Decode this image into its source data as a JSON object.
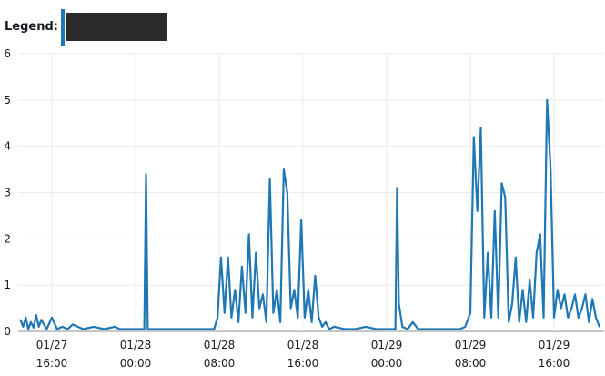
{
  "legend": {
    "label": "Legend:"
  },
  "chart_data": {
    "type": "line",
    "title": "",
    "xlabel": "",
    "ylabel": "",
    "ylim": [
      0,
      6
    ],
    "yticks": [
      0,
      1,
      2,
      3,
      4,
      5,
      6
    ],
    "grid": true,
    "legend_position": "top-left",
    "series_color": "#1f77b4",
    "x_tick_labels": [
      [
        "01/27",
        "16:00"
      ],
      [
        "01/28",
        "00:00"
      ],
      [
        "01/28",
        "08:00"
      ],
      [
        "01/28",
        "16:00"
      ],
      [
        "01/29",
        "00:00"
      ],
      [
        "01/29",
        "08:00"
      ],
      [
        "01/29",
        "16:00"
      ]
    ],
    "series": [
      {
        "x": [
          "01/27 13:00",
          "01/27 13:15",
          "01/27 13:30",
          "01/27 13:45",
          "01/27 14:00",
          "01/27 14:15",
          "01/27 14:30",
          "01/27 14:45",
          "01/27 15:00",
          "01/27 15:30",
          "01/27 16:00",
          "01/27 16:30",
          "01/27 17:00",
          "01/27 17:30",
          "01/27 18:00",
          "01/27 19:00",
          "01/27 20:00",
          "01/27 21:00",
          "01/27 22:00",
          "01/27 22:30",
          "01/27 23:00",
          "01/28 00:00",
          "01/28 00:50",
          "01/28 01:00",
          "01/28 01:10",
          "01/28 02:00",
          "01/28 03:00",
          "01/28 04:00",
          "01/28 05:00",
          "01/28 06:00",
          "01/28 07:00",
          "01/28 07:30",
          "01/28 07:50",
          "01/28 08:10",
          "01/28 08:30",
          "01/28 08:50",
          "01/28 09:10",
          "01/28 09:30",
          "01/28 09:50",
          "01/28 10:10",
          "01/28 10:30",
          "01/28 10:50",
          "01/28 11:10",
          "01/28 11:30",
          "01/28 11:50",
          "01/28 12:10",
          "01/28 12:30",
          "01/28 12:50",
          "01/28 13:10",
          "01/28 13:30",
          "01/28 13:50",
          "01/28 14:10",
          "01/28 14:30",
          "01/28 14:50",
          "01/28 15:10",
          "01/28 15:30",
          "01/28 15:50",
          "01/28 16:10",
          "01/28 16:30",
          "01/28 16:50",
          "01/28 17:10",
          "01/28 17:30",
          "01/28 17:50",
          "01/28 18:10",
          "01/28 18:30",
          "01/28 19:00",
          "01/28 20:00",
          "01/28 21:00",
          "01/28 22:00",
          "01/28 23:00",
          "01/29 00:00",
          "01/29 00:50",
          "01/29 01:00",
          "01/29 01:10",
          "01/29 01:30",
          "01/29 02:00",
          "01/29 02:30",
          "01/29 03:00",
          "01/29 04:00",
          "01/29 05:00",
          "01/29 06:00",
          "01/29 07:00",
          "01/29 07:30",
          "01/29 08:00",
          "01/29 08:20",
          "01/29 08:40",
          "01/29 09:00",
          "01/29 09:20",
          "01/29 09:40",
          "01/29 10:00",
          "01/29 10:20",
          "01/29 10:40",
          "01/29 11:00",
          "01/29 11:20",
          "01/29 11:40",
          "01/29 12:00",
          "01/29 12:20",
          "01/29 12:40",
          "01/29 13:00",
          "01/29 13:20",
          "01/29 13:40",
          "01/29 14:00",
          "01/29 14:20",
          "01/29 14:40",
          "01/29 15:00",
          "01/29 15:20",
          "01/29 15:40",
          "01/29 16:00",
          "01/29 16:20",
          "01/29 16:40",
          "01/29 17:00",
          "01/29 17:20",
          "01/29 17:40",
          "01/29 18:00",
          "01/29 18:20",
          "01/29 18:40",
          "01/29 19:00",
          "01/29 19:20",
          "01/29 19:40",
          "01/29 20:00",
          "01/29 20:20"
        ],
        "values": [
          0.25,
          0.1,
          0.3,
          0.05,
          0.2,
          0.08,
          0.35,
          0.1,
          0.25,
          0.05,
          0.3,
          0.05,
          0.1,
          0.05,
          0.15,
          0.05,
          0.1,
          0.05,
          0.1,
          0.05,
          0.05,
          0.05,
          0.05,
          3.4,
          0.05,
          0.05,
          0.05,
          0.05,
          0.05,
          0.05,
          0.05,
          0.05,
          0.3,
          1.6,
          0.4,
          1.6,
          0.3,
          0.9,
          0.2,
          1.4,
          0.4,
          2.1,
          0.3,
          1.7,
          0.5,
          0.8,
          0.2,
          3.3,
          0.4,
          0.9,
          0.2,
          3.5,
          3.0,
          0.5,
          0.9,
          0.3,
          2.4,
          0.3,
          0.9,
          0.2,
          1.2,
          0.3,
          0.1,
          0.2,
          0.05,
          0.1,
          0.05,
          0.05,
          0.1,
          0.05,
          0.05,
          0.05,
          3.1,
          0.6,
          0.1,
          0.05,
          0.2,
          0.05,
          0.05,
          0.05,
          0.05,
          0.05,
          0.1,
          0.4,
          4.2,
          2.6,
          4.4,
          0.3,
          1.7,
          0.3,
          2.6,
          0.3,
          3.2,
          2.9,
          0.2,
          0.6,
          1.6,
          0.2,
          0.9,
          0.2,
          1.1,
          0.3,
          1.7,
          2.1,
          0.3,
          5.0,
          3.5,
          0.3,
          0.9,
          0.5,
          0.8,
          0.3,
          0.5,
          0.8,
          0.3,
          0.5,
          0.8,
          0.2,
          0.7,
          0.3,
          0.1
        ]
      }
    ]
  }
}
